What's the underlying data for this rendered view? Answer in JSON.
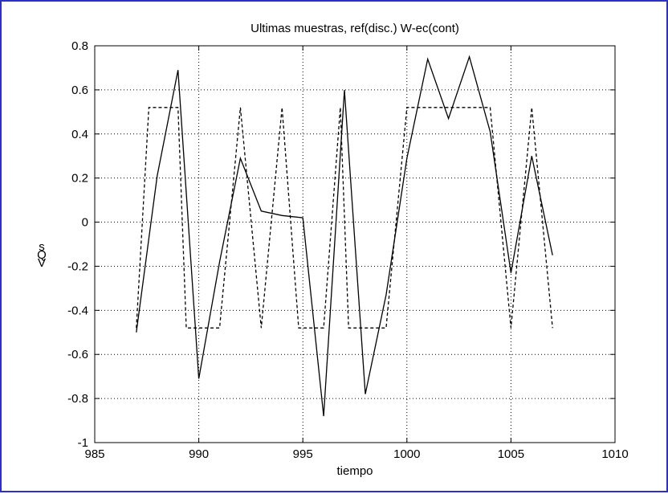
{
  "chart_data": {
    "type": "line",
    "title": "Ultimas muestras, ref(disc.) W-ec(cont)",
    "xlabel": "tiempo",
    "ylabel": "s\nQ\nV",
    "xlim": [
      985,
      1010
    ],
    "ylim": [
      -1,
      0.8
    ],
    "xticks": [
      985,
      990,
      995,
      1000,
      1005,
      1010
    ],
    "yticks": [
      -1,
      -0.8,
      -0.6,
      -0.4,
      -0.2,
      0,
      0.2,
      0.4,
      0.6,
      0.8
    ],
    "xtick_labels": [
      "985",
      "990",
      "995",
      "1000",
      "1005",
      "1010"
    ],
    "ytick_labels": [
      "-1",
      "-0.8",
      "-0.6",
      "-0.4",
      "-0.2",
      "0",
      "0.2",
      "0.4",
      "0.6",
      "0.8"
    ],
    "grid": true,
    "series": [
      {
        "style": "solid",
        "color": "#000000",
        "x": [
          987,
          988,
          989,
          990,
          991,
          992,
          993,
          994,
          995,
          996,
          997,
          998,
          999,
          1000,
          1001,
          1002,
          1003,
          1004,
          1005,
          1006,
          1007
        ],
        "y": [
          -0.5,
          0.21,
          0.69,
          -0.71,
          -0.18,
          0.29,
          0.05,
          0.03,
          0.02,
          -0.88,
          0.6,
          -0.78,
          -0.33,
          0.29,
          0.74,
          0.47,
          0.75,
          0.41,
          -0.23,
          0.3,
          -0.15
        ]
      },
      {
        "style": "dashed",
        "color": "#000000",
        "x": [
          987,
          987.6,
          989,
          989.4,
          991,
          992,
          993,
          994,
          994.8,
          996,
          996.8,
          997.2,
          999,
          1000,
          1004,
          1005,
          1006,
          1007
        ],
        "y": [
          -0.48,
          0.52,
          0.52,
          -0.48,
          -0.48,
          0.52,
          -0.48,
          0.52,
          -0.48,
          -0.48,
          0.52,
          -0.48,
          -0.48,
          0.52,
          0.52,
          -0.48,
          0.52,
          -0.48
        ]
      }
    ]
  }
}
